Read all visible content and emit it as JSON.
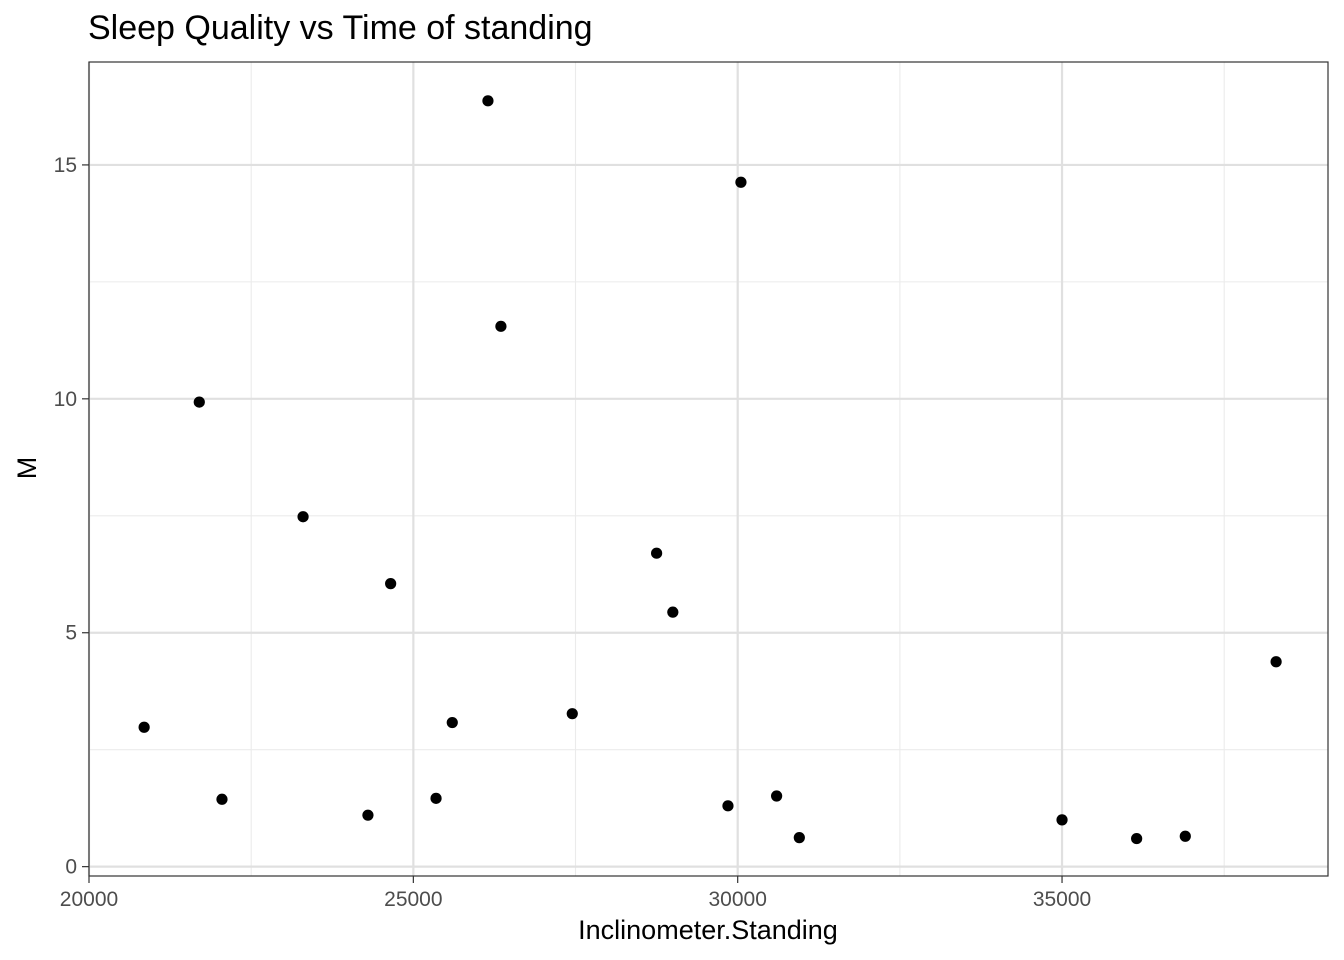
{
  "chart_data": {
    "type": "scatter",
    "title": "Sleep Quality vs Time of standing",
    "xlabel": "Inclinometer.Standing",
    "ylabel": "M",
    "xlim": [
      20000,
      39100
    ],
    "ylim": [
      -0.2,
      17.2
    ],
    "x_ticks": [
      20000,
      25000,
      30000,
      35000
    ],
    "x_tick_labels": [
      "20000",
      "25000",
      "30000",
      "35000"
    ],
    "y_ticks": [
      0,
      5,
      10,
      15
    ],
    "y_tick_labels": [
      "0",
      "5",
      "10",
      "15"
    ],
    "grid": true,
    "legend": "none",
    "point_color": "#000000",
    "points": [
      {
        "x": 20850,
        "y": 2.98
      },
      {
        "x": 21700,
        "y": 9.93
      },
      {
        "x": 22050,
        "y": 1.44
      },
      {
        "x": 23300,
        "y": 7.48
      },
      {
        "x": 24300,
        "y": 1.1
      },
      {
        "x": 24650,
        "y": 6.05
      },
      {
        "x": 25350,
        "y": 1.46
      },
      {
        "x": 25600,
        "y": 3.08
      },
      {
        "x": 26150,
        "y": 16.37
      },
      {
        "x": 26350,
        "y": 11.55
      },
      {
        "x": 27450,
        "y": 3.27
      },
      {
        "x": 28750,
        "y": 6.7
      },
      {
        "x": 29000,
        "y": 5.44
      },
      {
        "x": 29850,
        "y": 1.3
      },
      {
        "x": 30050,
        "y": 14.63
      },
      {
        "x": 30600,
        "y": 1.51
      },
      {
        "x": 30950,
        "y": 0.62
      },
      {
        "x": 35000,
        "y": 1.0
      },
      {
        "x": 36150,
        "y": 0.6
      },
      {
        "x": 36900,
        "y": 0.65
      },
      {
        "x": 38300,
        "y": 4.38
      }
    ]
  }
}
